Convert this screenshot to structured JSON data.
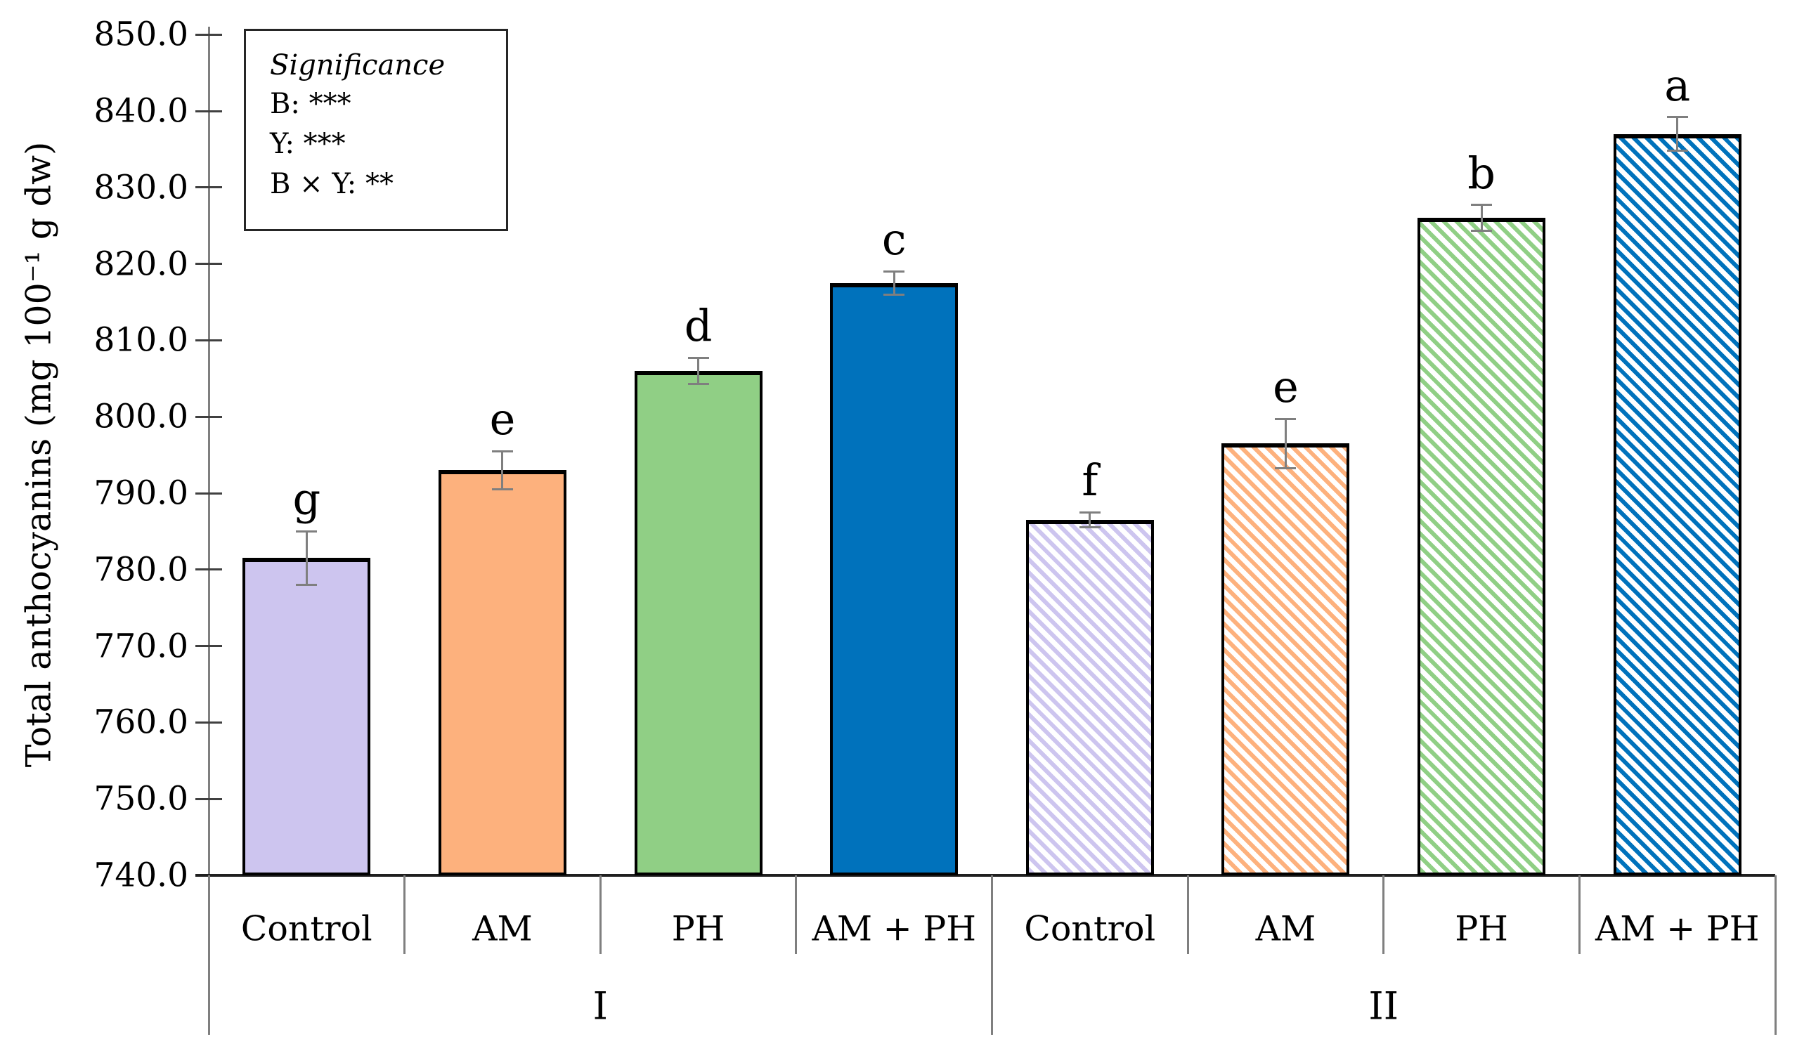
{
  "chart_data": {
    "type": "bar",
    "title": "",
    "xlabel": "",
    "ylabel": "Total anthocyanins (mg 100⁻¹ g dw)",
    "ylim": [
      740,
      850
    ],
    "ytick_step": 10,
    "ytick_labels": [
      "850.0",
      "840.0",
      "830.0",
      "820.0",
      "810.0",
      "800.0",
      "790.0",
      "780.0",
      "770.0",
      "760.0",
      "750.0",
      "740.0"
    ],
    "grid": false,
    "legend_position": "none",
    "significance_box": {
      "title": "Significance",
      "lines": [
        "B: ***",
        "Y: ***",
        "B × Y: **"
      ]
    },
    "bar_colors": {
      "control": "#CDC5EF",
      "am": "#FDB17D",
      "ph": "#90CF85",
      "am_ph": "#0072BC"
    },
    "error_bar_color": "#7f7f7f",
    "groups": [
      {
        "label": "I",
        "hatched": false,
        "bars": [
          {
            "category": "Control",
            "value": 781.5,
            "error": 3.5,
            "letter": "g",
            "color": "#CDC5EF"
          },
          {
            "category": "AM",
            "value": 793.0,
            "error": 2.5,
            "letter": "e",
            "color": "#FDB17D"
          },
          {
            "category": "PH",
            "value": 806.0,
            "error": 1.7,
            "letter": "d",
            "color": "#90CF85"
          },
          {
            "category": "AM + PH",
            "value": 817.5,
            "error": 1.5,
            "letter": "c",
            "color": "#0072BC"
          }
        ]
      },
      {
        "label": "II",
        "hatched": true,
        "bars": [
          {
            "category": "Control",
            "value": 786.5,
            "error": 1.0,
            "letter": "f",
            "color": "#CDC5EF"
          },
          {
            "category": "AM",
            "value": 796.5,
            "error": 3.2,
            "letter": "e",
            "color": "#FDB17D"
          },
          {
            "category": "PH",
            "value": 826.0,
            "error": 1.7,
            "letter": "b",
            "color": "#90CF85"
          },
          {
            "category": "AM + PH",
            "value": 837.0,
            "error": 2.2,
            "letter": "a",
            "color": "#0072BC"
          }
        ]
      }
    ]
  }
}
